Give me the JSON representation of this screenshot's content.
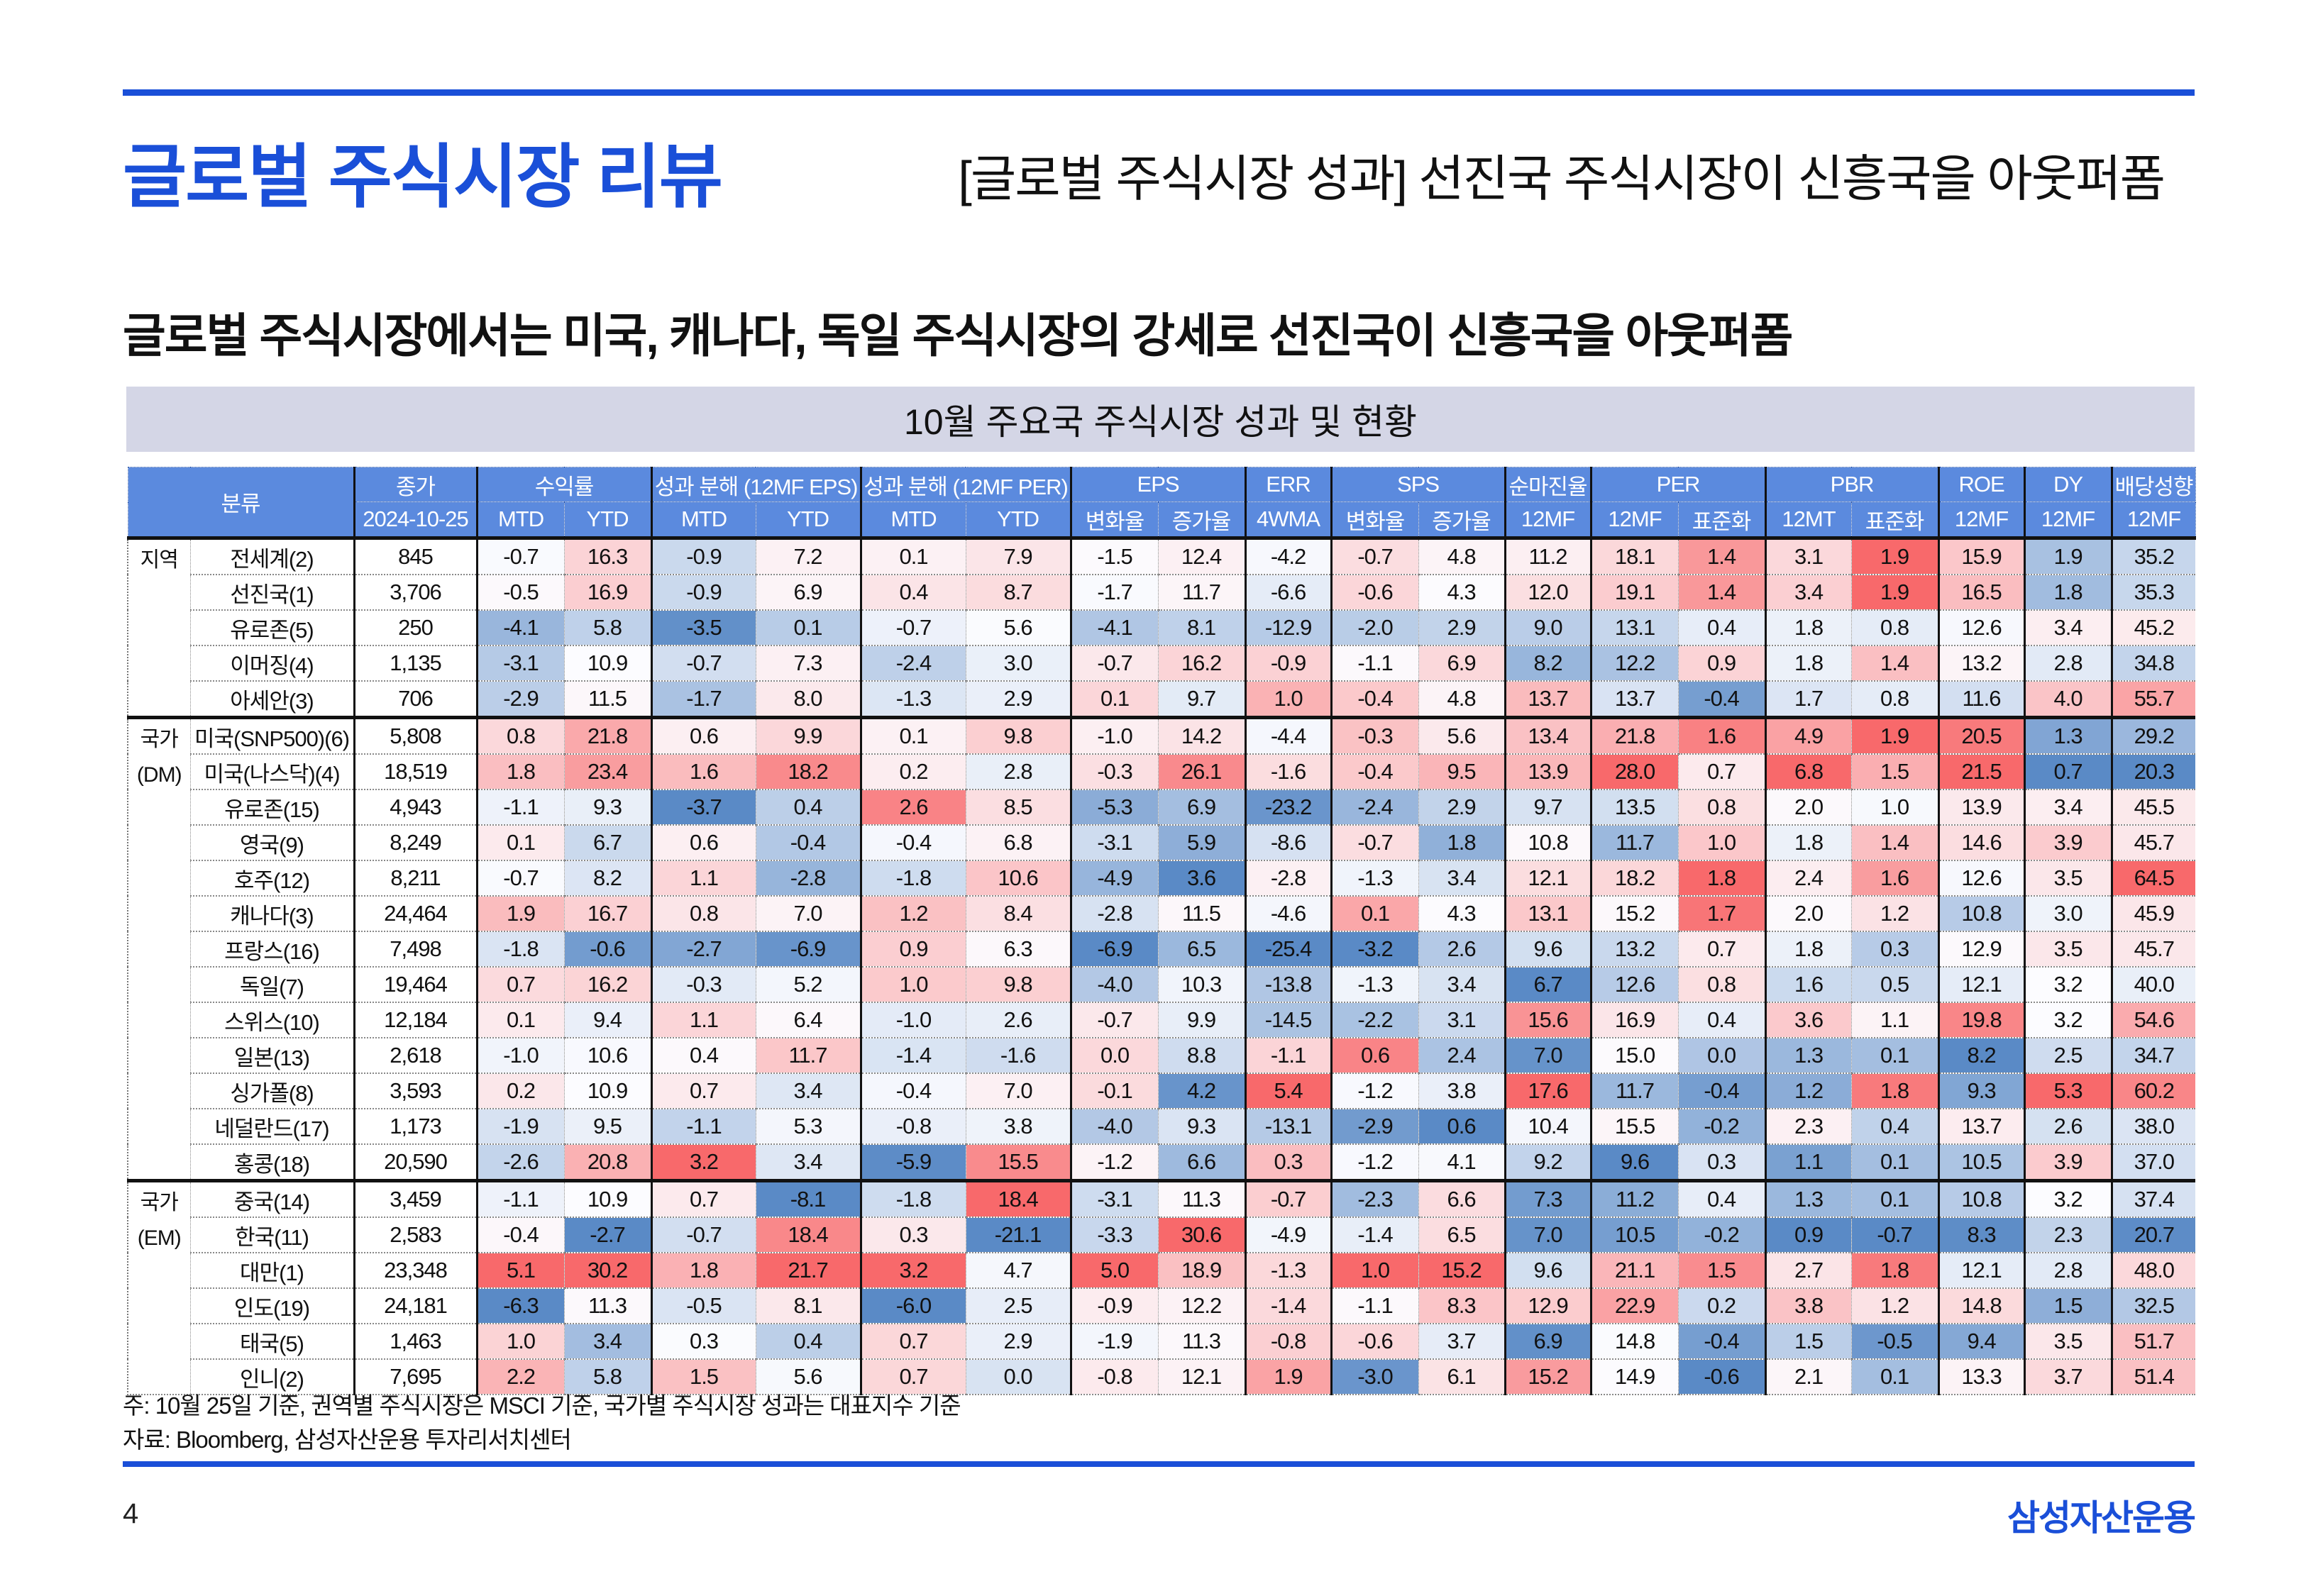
{
  "header": {
    "title": "글로벌 주식시장 리뷰",
    "section_title": "[글로벌 주식시장 성과] 선진국 주식시장이 신흥국을 아웃퍼폼"
  },
  "subtitle": "글로벌 주식시장에서는 미국, 캐나다, 독일 주식시장의 강세로 선진국이 신흥국을 아웃퍼폼",
  "table": {
    "caption": "10월 주요국 주식시장 성과 및 현황",
    "header_row1": [
      {
        "label": "분류",
        "colspan": 2,
        "rowspan": 2
      },
      {
        "label": "종가",
        "colspan": 1
      },
      {
        "label": "수익률",
        "colspan": 2
      },
      {
        "label": "성과 분해 (12MF EPS)",
        "colspan": 2
      },
      {
        "label": "성과 분해 (12MF PER)",
        "colspan": 2
      },
      {
        "label": "EPS",
        "colspan": 2
      },
      {
        "label": "ERR",
        "colspan": 1
      },
      {
        "label": "SPS",
        "colspan": 2
      },
      {
        "label": "순마진율",
        "colspan": 1
      },
      {
        "label": "PER",
        "colspan": 2
      },
      {
        "label": "PBR",
        "colspan": 2
      },
      {
        "label": "ROE",
        "colspan": 1
      },
      {
        "label": "DY",
        "colspan": 1
      },
      {
        "label": "배당성향",
        "colspan": 1
      }
    ],
    "header_row2": [
      "2024-10-25",
      "MTD",
      "YTD",
      "MTD",
      "YTD",
      "MTD",
      "YTD",
      "변화율",
      "증가율",
      "4WMA",
      "변화율",
      "증가율",
      "12MF",
      "12MF",
      "표준화",
      "12MT",
      "표준화",
      "12MF",
      "12MF",
      "12MF"
    ],
    "groups": [
      {
        "label": "지역",
        "rows": 5
      },
      {
        "label": "국가\n(DM)",
        "rows": 13
      },
      {
        "label": "국가\n(EM)",
        "rows": 6
      }
    ],
    "rows": [
      {
        "name": "전세계(2)",
        "values": [
          "845",
          "-0.7",
          "16.3",
          "-0.9",
          "7.2",
          "0.1",
          "7.9",
          "-1.5",
          "12.4",
          "-4.2",
          "-0.7",
          "4.8",
          "11.2",
          "18.1",
          "1.4",
          "3.1",
          "1.9",
          "15.9",
          "1.9",
          "35.2"
        ]
      },
      {
        "name": "선진국(1)",
        "values": [
          "3,706",
          "-0.5",
          "16.9",
          "-0.9",
          "6.9",
          "0.4",
          "8.7",
          "-1.7",
          "11.7",
          "-6.6",
          "-0.6",
          "4.3",
          "12.0",
          "19.1",
          "1.4",
          "3.4",
          "1.9",
          "16.5",
          "1.8",
          "35.3"
        ]
      },
      {
        "name": "유로존(5)",
        "values": [
          "250",
          "-4.1",
          "5.8",
          "-3.5",
          "0.1",
          "-0.7",
          "5.6",
          "-4.1",
          "8.1",
          "-12.9",
          "-2.0",
          "2.9",
          "9.0",
          "13.1",
          "0.4",
          "1.8",
          "0.8",
          "12.6",
          "3.4",
          "45.2"
        ]
      },
      {
        "name": "이머징(4)",
        "values": [
          "1,135",
          "-3.1",
          "10.9",
          "-0.7",
          "7.3",
          "-2.4",
          "3.0",
          "-0.7",
          "16.2",
          "-0.9",
          "-1.1",
          "6.9",
          "8.2",
          "12.2",
          "0.9",
          "1.8",
          "1.4",
          "13.2",
          "2.8",
          "34.8"
        ]
      },
      {
        "name": "아세안(3)",
        "values": [
          "706",
          "-2.9",
          "11.5",
          "-1.7",
          "8.0",
          "-1.3",
          "2.9",
          "0.1",
          "9.7",
          "1.0",
          "-0.4",
          "4.8",
          "13.7",
          "13.7",
          "-0.4",
          "1.7",
          "0.8",
          "11.6",
          "4.0",
          "55.7"
        ]
      },
      {
        "name": "미국(SNP500)(6)",
        "values": [
          "5,808",
          "0.8",
          "21.8",
          "0.6",
          "9.9",
          "0.1",
          "9.8",
          "-1.0",
          "14.2",
          "-4.4",
          "-0.3",
          "5.6",
          "13.4",
          "21.8",
          "1.6",
          "4.9",
          "1.9",
          "20.5",
          "1.3",
          "29.2"
        ]
      },
      {
        "name": "미국(나스닥)(4)",
        "values": [
          "18,519",
          "1.8",
          "23.4",
          "1.6",
          "18.2",
          "0.2",
          "2.8",
          "-0.3",
          "26.1",
          "-1.6",
          "-0.4",
          "9.5",
          "13.9",
          "28.0",
          "0.7",
          "6.8",
          "1.5",
          "21.5",
          "0.7",
          "20.3"
        ]
      },
      {
        "name": "유로존(15)",
        "values": [
          "4,943",
          "-1.1",
          "9.3",
          "-3.7",
          "0.4",
          "2.6",
          "8.5",
          "-5.3",
          "6.9",
          "-23.2",
          "-2.4",
          "2.9",
          "9.7",
          "13.5",
          "0.8",
          "2.0",
          "1.0",
          "13.9",
          "3.4",
          "45.5"
        ]
      },
      {
        "name": "영국(9)",
        "values": [
          "8,249",
          "0.1",
          "6.7",
          "0.6",
          "-0.4",
          "-0.4",
          "6.8",
          "-3.1",
          "5.9",
          "-8.6",
          "-0.7",
          "1.8",
          "10.8",
          "11.7",
          "1.0",
          "1.8",
          "1.4",
          "14.6",
          "3.9",
          "45.7"
        ]
      },
      {
        "name": "호주(12)",
        "values": [
          "8,211",
          "-0.7",
          "8.2",
          "1.1",
          "-2.8",
          "-1.8",
          "10.6",
          "-4.9",
          "3.6",
          "-2.8",
          "-1.3",
          "3.4",
          "12.1",
          "18.2",
          "1.8",
          "2.4",
          "1.6",
          "12.6",
          "3.5",
          "64.5"
        ]
      },
      {
        "name": "캐나다(3)",
        "values": [
          "24,464",
          "1.9",
          "16.7",
          "0.8",
          "7.0",
          "1.2",
          "8.4",
          "-2.8",
          "11.5",
          "-4.6",
          "0.1",
          "4.3",
          "13.1",
          "15.2",
          "1.7",
          "2.0",
          "1.2",
          "10.8",
          "3.0",
          "45.9"
        ]
      },
      {
        "name": "프랑스(16)",
        "values": [
          "7,498",
          "-1.8",
          "-0.6",
          "-2.7",
          "-6.9",
          "0.9",
          "6.3",
          "-6.9",
          "6.5",
          "-25.4",
          "-3.2",
          "2.6",
          "9.6",
          "13.2",
          "0.7",
          "1.8",
          "0.3",
          "12.9",
          "3.5",
          "45.7"
        ]
      },
      {
        "name": "독일(7)",
        "values": [
          "19,464",
          "0.7",
          "16.2",
          "-0.3",
          "5.2",
          "1.0",
          "9.8",
          "-4.0",
          "10.3",
          "-13.8",
          "-1.3",
          "3.4",
          "6.7",
          "12.6",
          "0.8",
          "1.6",
          "0.5",
          "12.1",
          "3.2",
          "40.0"
        ]
      },
      {
        "name": "스위스(10)",
        "values": [
          "12,184",
          "0.1",
          "9.4",
          "1.1",
          "6.4",
          "-1.0",
          "2.6",
          "-0.7",
          "9.9",
          "-14.5",
          "-2.2",
          "3.1",
          "15.6",
          "16.9",
          "0.4",
          "3.6",
          "1.1",
          "19.8",
          "3.2",
          "54.6"
        ]
      },
      {
        "name": "일본(13)",
        "values": [
          "2,618",
          "-1.0",
          "10.6",
          "0.4",
          "11.7",
          "-1.4",
          "-1.6",
          "0.0",
          "8.8",
          "-1.1",
          "0.6",
          "2.4",
          "7.0",
          "15.0",
          "0.0",
          "1.3",
          "0.1",
          "8.2",
          "2.5",
          "34.7"
        ]
      },
      {
        "name": "싱가폴(8)",
        "values": [
          "3,593",
          "0.2",
          "10.9",
          "0.7",
          "3.4",
          "-0.4",
          "7.0",
          "-0.1",
          "4.2",
          "5.4",
          "-1.2",
          "3.8",
          "17.6",
          "11.7",
          "-0.4",
          "1.2",
          "1.8",
          "9.3",
          "5.3",
          "60.2"
        ]
      },
      {
        "name": "네덜란드(17)",
        "values": [
          "1,173",
          "-1.9",
          "9.5",
          "-1.1",
          "5.3",
          "-0.8",
          "3.8",
          "-4.0",
          "9.3",
          "-13.1",
          "-2.9",
          "0.6",
          "10.4",
          "15.5",
          "-0.2",
          "2.3",
          "0.4",
          "13.7",
          "2.6",
          "38.0"
        ]
      },
      {
        "name": "홍콩(18)",
        "values": [
          "20,590",
          "-2.6",
          "20.8",
          "3.2",
          "3.4",
          "-5.9",
          "15.5",
          "-1.2",
          "6.6",
          "0.3",
          "-1.2",
          "4.1",
          "9.2",
          "9.6",
          "0.3",
          "1.1",
          "0.1",
          "10.5",
          "3.9",
          "37.0"
        ]
      },
      {
        "name": "중국(14)",
        "values": [
          "3,459",
          "-1.1",
          "10.9",
          "0.7",
          "-8.1",
          "-1.8",
          "18.4",
          "-3.1",
          "11.3",
          "-0.7",
          "-2.3",
          "6.6",
          "7.3",
          "11.2",
          "0.4",
          "1.3",
          "0.1",
          "10.8",
          "3.2",
          "37.4"
        ]
      },
      {
        "name": "한국(11)",
        "values": [
          "2,583",
          "-0.4",
          "-2.7",
          "-0.7",
          "18.4",
          "0.3",
          "-21.1",
          "-3.3",
          "30.6",
          "-4.9",
          "-1.4",
          "6.5",
          "7.0",
          "10.5",
          "-0.2",
          "0.9",
          "-0.7",
          "8.3",
          "2.3",
          "20.7"
        ]
      },
      {
        "name": "대만(1)",
        "values": [
          "23,348",
          "5.1",
          "30.2",
          "1.8",
          "21.7",
          "3.2",
          "4.7",
          "5.0",
          "18.9",
          "-1.3",
          "1.0",
          "15.2",
          "9.6",
          "21.1",
          "1.5",
          "2.7",
          "1.8",
          "12.1",
          "2.8",
          "48.0"
        ]
      },
      {
        "name": "인도(19)",
        "values": [
          "24,181",
          "-6.3",
          "11.3",
          "-0.5",
          "8.1",
          "-6.0",
          "2.5",
          "-0.9",
          "12.2",
          "-1.4",
          "-1.1",
          "8.3",
          "12.9",
          "22.9",
          "0.2",
          "3.8",
          "1.2",
          "14.8",
          "1.5",
          "32.5"
        ]
      },
      {
        "name": "태국(5)",
        "values": [
          "1,463",
          "1.0",
          "3.4",
          "0.3",
          "0.4",
          "0.7",
          "2.9",
          "-1.9",
          "11.3",
          "-0.8",
          "-0.6",
          "3.7",
          "6.9",
          "14.8",
          "-0.4",
          "1.5",
          "-0.5",
          "9.4",
          "3.5",
          "51.7"
        ]
      },
      {
        "name": "인니(2)",
        "values": [
          "7,695",
          "2.2",
          "5.8",
          "1.5",
          "5.6",
          "0.7",
          "0.0",
          "-0.8",
          "12.1",
          "1.9",
          "-3.0",
          "6.1",
          "15.2",
          "14.9",
          "-0.6",
          "2.1",
          "0.1",
          "13.3",
          "3.7",
          "51.4"
        ]
      }
    ]
  },
  "colors": {
    "low": "#5a8ac6",
    "mid": "#fcfcff",
    "high": "#f8696b",
    "brand": "#1a4fd8",
    "header_bg": "#5b8ade"
  },
  "notes": [
    "주: 10월 25일 기준, 권역별 주식시장은 MSCI 기준, 국가별 주식시장 성과는 대표지수 기준",
    "자료: Bloomberg, 삼성자산운용 투자리서치센터"
  ],
  "footer": {
    "page": "4",
    "logo": "삼성자산운용"
  }
}
